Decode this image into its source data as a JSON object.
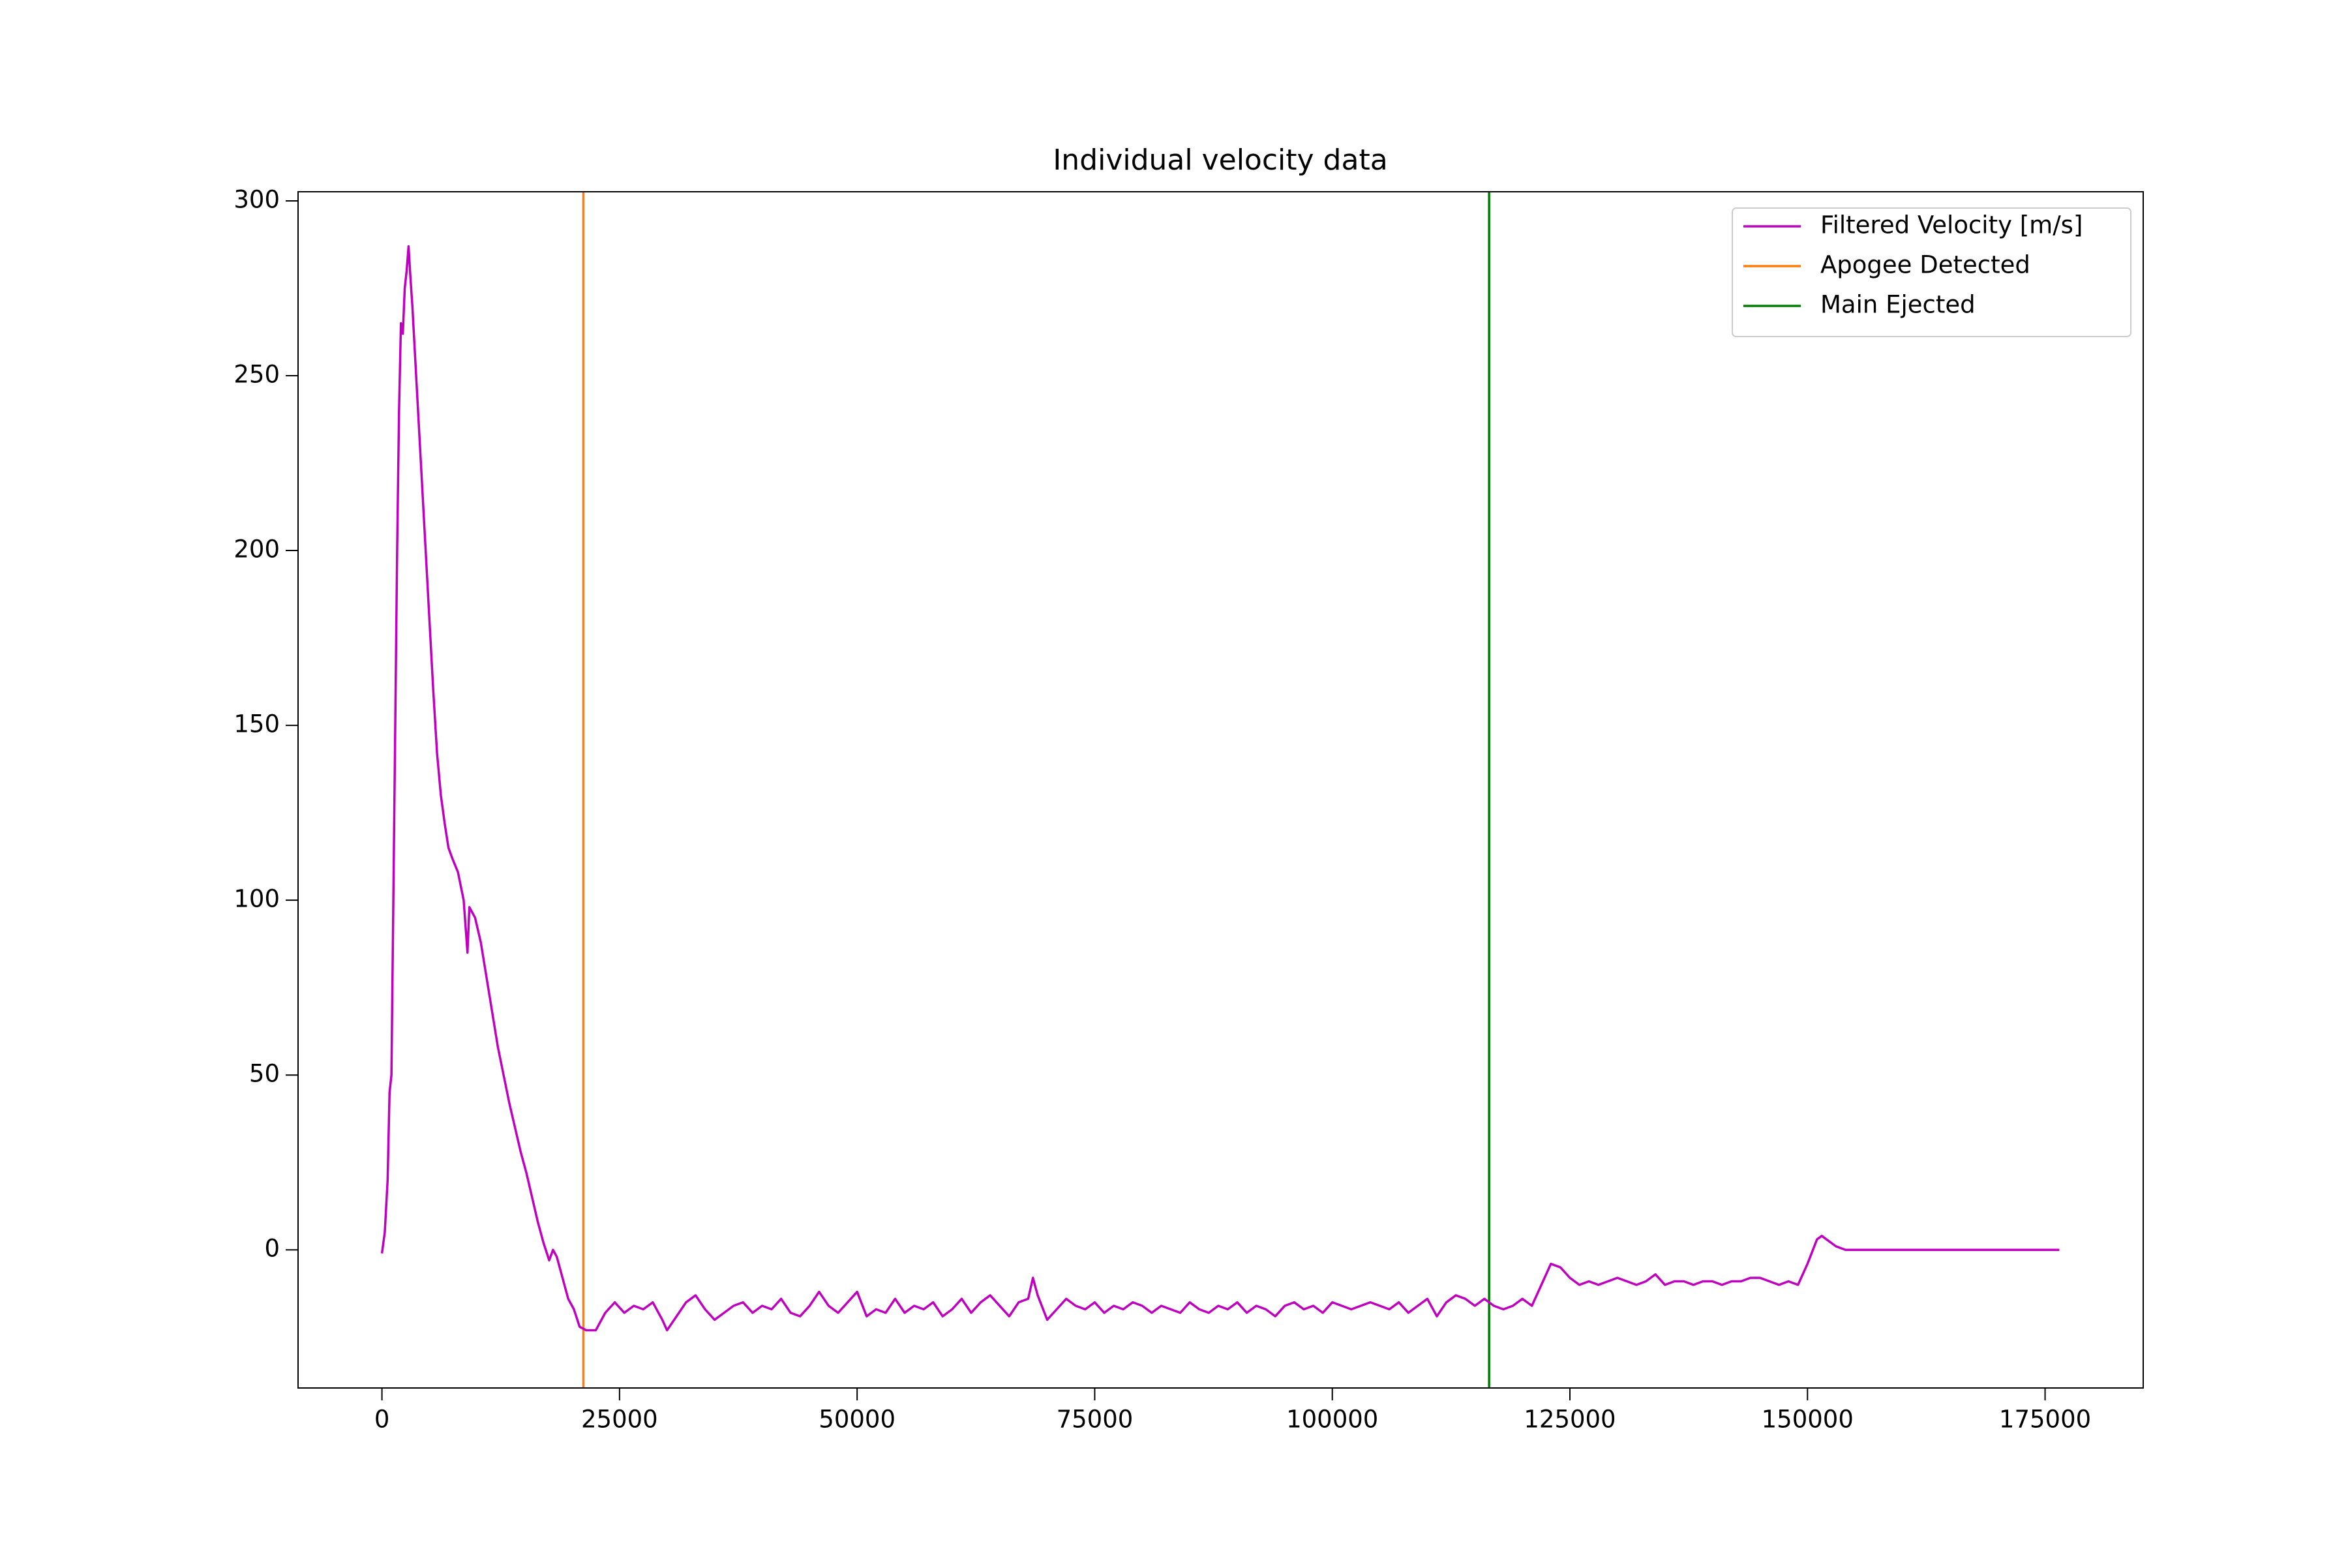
{
  "chart_data": {
    "type": "line",
    "title": "Individual velocity data",
    "series": [
      {
        "name": "Filtered Velocity [m/s]",
        "color": "#bf00bf",
        "x": [
          0,
          300,
          600,
          800,
          1000,
          1200,
          1400,
          1600,
          1800,
          2000,
          2200,
          2400,
          2600,
          2800,
          3000,
          3200,
          3400,
          3800,
          4200,
          4600,
          5000,
          5400,
          5800,
          6200,
          6600,
          7000,
          7400,
          8000,
          8600,
          9000,
          9200,
          9800,
          10400,
          11000,
          11600,
          12200,
          12800,
          13400,
          14000,
          14600,
          15200,
          15800,
          16400,
          17000,
          17600,
          18000,
          18400,
          19000,
          19600,
          20200,
          20800,
          21500,
          22500,
          23500,
          24500,
          25500,
          26500,
          27500,
          28500,
          29500,
          30000,
          31000,
          32000,
          33000,
          34000,
          35000,
          36000,
          37000,
          38000,
          39000,
          40000,
          41000,
          42000,
          43000,
          44000,
          45000,
          46000,
          47000,
          48000,
          49000,
          50000,
          51000,
          52000,
          53000,
          54000,
          55000,
          56000,
          57000,
          58000,
          59000,
          60000,
          61000,
          62000,
          63000,
          64000,
          65000,
          66000,
          67000,
          68000,
          68500,
          69000,
          70000,
          71000,
          72000,
          73000,
          74000,
          75000,
          76000,
          77000,
          78000,
          79000,
          80000,
          81000,
          82000,
          83000,
          84000,
          85000,
          86000,
          87000,
          88000,
          89000,
          90000,
          91000,
          92000,
          93000,
          94000,
          95000,
          96000,
          97000,
          98000,
          99000,
          100000,
          101000,
          102000,
          103000,
          104000,
          105000,
          106000,
          107000,
          108000,
          109000,
          110000,
          111000,
          112000,
          113000,
          114000,
          115000,
          116000,
          117000,
          118000,
          119000,
          120000,
          121000,
          122000,
          123000,
          124000,
          125000,
          126000,
          127000,
          128000,
          129000,
          130000,
          131000,
          132000,
          133000,
          134000,
          135000,
          136000,
          137000,
          138000,
          139000,
          140000,
          141000,
          142000,
          143000,
          144000,
          145000,
          146000,
          147000,
          148000,
          149000,
          150000,
          151000,
          151500,
          152000,
          153000,
          154000,
          156000,
          160000,
          165000,
          170000,
          176500
        ],
        "values": [
          -1,
          5,
          20,
          45,
          50,
          100,
          150,
          200,
          240,
          265,
          262,
          275,
          280,
          287,
          278,
          270,
          260,
          240,
          220,
          200,
          180,
          160,
          142,
          130,
          122,
          115,
          112,
          108,
          100,
          85,
          98,
          95,
          88,
          78,
          68,
          58,
          50,
          42,
          35,
          28,
          22,
          15,
          8,
          2,
          -3,
          0,
          -2,
          -8,
          -14,
          -17,
          -22,
          -23,
          -23,
          -18,
          -15,
          -18,
          -16,
          -17,
          -15,
          -20,
          -23,
          -19,
          -15,
          -13,
          -17,
          -20,
          -18,
          -16,
          -15,
          -18,
          -16,
          -17,
          -14,
          -18,
          -19,
          -16,
          -12,
          -16,
          -18,
          -15,
          -12,
          -19,
          -17,
          -18,
          -14,
          -18,
          -16,
          -17,
          -15,
          -19,
          -17,
          -14,
          -18,
          -15,
          -13,
          -16,
          -19,
          -15,
          -14,
          -8,
          -13,
          -20,
          -17,
          -14,
          -16,
          -17,
          -15,
          -18,
          -16,
          -17,
          -15,
          -16,
          -18,
          -16,
          -17,
          -18,
          -15,
          -17,
          -18,
          -16,
          -17,
          -15,
          -18,
          -16,
          -17,
          -19,
          -16,
          -15,
          -17,
          -16,
          -18,
          -15,
          -16,
          -17,
          -16,
          -15,
          -16,
          -17,
          -15,
          -18,
          -16,
          -14,
          -19,
          -15,
          -13,
          -14,
          -16,
          -14,
          -16,
          -17,
          -16,
          -14,
          -16,
          -10,
          -4,
          -5,
          -8,
          -10,
          -9,
          -10,
          -9,
          -8,
          -9,
          -10,
          -9,
          -7,
          -10,
          -9,
          -9,
          -10,
          -9,
          -9,
          -10,
          -9,
          -9,
          -8,
          -8,
          -9,
          -10,
          -9,
          -10,
          -4,
          3,
          4,
          3,
          1,
          0,
          0,
          0,
          0,
          0,
          0
        ]
      }
    ],
    "vlines": [
      {
        "name": "Apogee Detected",
        "color": "#ff7f0e",
        "x": 21200
      },
      {
        "name": "Main Ejected",
        "color": "#008000",
        "x": 116500
      }
    ],
    "xlim": [
      -8825,
      185325
    ],
    "xticks": [
      0,
      25000,
      50000,
      75000,
      100000,
      125000,
      150000,
      175000
    ],
    "ylim": [
      -39.5,
      302.6
    ],
    "yticks": [
      0,
      50,
      100,
      150,
      200,
      250,
      300
    ],
    "grid": false,
    "legend": "upper right"
  }
}
